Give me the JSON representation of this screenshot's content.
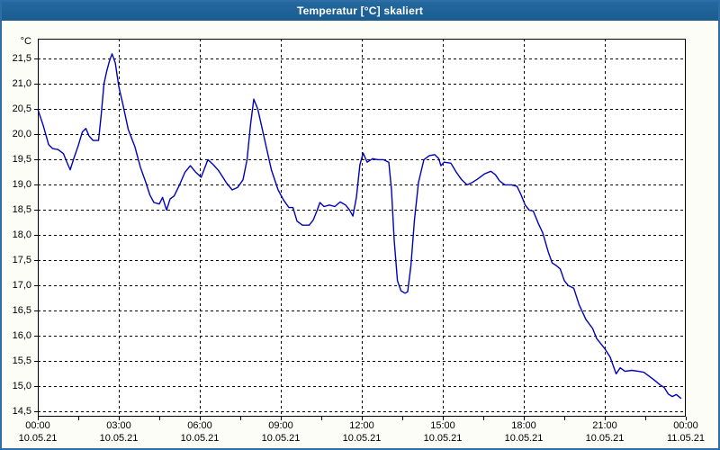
{
  "window": {
    "title": "Temperatur [°C] skaliert"
  },
  "colors": {
    "titlebar_bg": "#1E6297",
    "titlebar_text": "#FFFFFF",
    "frame_border": "#2E6DA6",
    "page_bg": "#FDFDF8",
    "plot_bg": "#FFFFFF",
    "plot_border": "#000000",
    "grid_color": "#000000",
    "line_color": "#0000BB",
    "label_color": "#000000"
  },
  "chart_data": {
    "type": "line",
    "title": "Temperatur [°C] skaliert",
    "ylabel": "°C",
    "xlabel": "",
    "xlim": [
      0,
      24
    ],
    "ylim": [
      14.4,
      21.9
    ],
    "grid": "dashed",
    "legend": "none",
    "y_ticks": [
      {
        "value": 21.5,
        "label": "21,5"
      },
      {
        "value": 21.0,
        "label": "21,0"
      },
      {
        "value": 20.5,
        "label": "20,5"
      },
      {
        "value": 20.0,
        "label": "20,0"
      },
      {
        "value": 19.5,
        "label": "19,5"
      },
      {
        "value": 19.0,
        "label": "19,0"
      },
      {
        "value": 18.5,
        "label": "18,5"
      },
      {
        "value": 18.0,
        "label": "18,0"
      },
      {
        "value": 17.5,
        "label": "17,5"
      },
      {
        "value": 17.0,
        "label": "17,0"
      },
      {
        "value": 16.5,
        "label": "16,5"
      },
      {
        "value": 16.0,
        "label": "16,0"
      },
      {
        "value": 15.5,
        "label": "15,5"
      },
      {
        "value": 15.0,
        "label": "15,0"
      },
      {
        "value": 14.5,
        "label": "14,5"
      }
    ],
    "x_ticks": [
      {
        "hour": 0,
        "time": "00:00",
        "date": "10.05.21"
      },
      {
        "hour": 3,
        "time": "03:00",
        "date": "10.05.21"
      },
      {
        "hour": 6,
        "time": "06:00",
        "date": "10.05.21"
      },
      {
        "hour": 9,
        "time": "09:00",
        "date": "10.05.21"
      },
      {
        "hour": 12,
        "time": "12:00",
        "date": "10.05.21"
      },
      {
        "hour": 15,
        "time": "15:00",
        "date": "10.05.21"
      },
      {
        "hour": 18,
        "time": "18:00",
        "date": "10.05.21"
      },
      {
        "hour": 21,
        "time": "21:00",
        "date": "10.05.21"
      },
      {
        "hour": 24,
        "time": "00:00",
        "date": "11.05.21"
      }
    ],
    "x_grid_hours": [
      3,
      6,
      9,
      12,
      15,
      18,
      21
    ],
    "x_minor_tick_step_hours": 1.5,
    "series": [
      {
        "name": "Temperatur",
        "unit": "°C",
        "color": "#0000BB",
        "points": [
          [
            0.0,
            20.5
          ],
          [
            0.2,
            20.18
          ],
          [
            0.4,
            19.8
          ],
          [
            0.55,
            19.72
          ],
          [
            0.75,
            19.7
          ],
          [
            0.95,
            19.62
          ],
          [
            1.1,
            19.42
          ],
          [
            1.2,
            19.3
          ],
          [
            1.35,
            19.55
          ],
          [
            1.5,
            19.78
          ],
          [
            1.65,
            20.05
          ],
          [
            1.78,
            20.12
          ],
          [
            1.9,
            19.97
          ],
          [
            2.05,
            19.88
          ],
          [
            2.25,
            19.88
          ],
          [
            2.35,
            20.4
          ],
          [
            2.45,
            21.0
          ],
          [
            2.55,
            21.25
          ],
          [
            2.65,
            21.45
          ],
          [
            2.75,
            21.6
          ],
          [
            2.87,
            21.42
          ],
          [
            3.0,
            20.95
          ],
          [
            3.15,
            20.6
          ],
          [
            3.35,
            20.1
          ],
          [
            3.6,
            19.75
          ],
          [
            3.8,
            19.35
          ],
          [
            4.0,
            19.05
          ],
          [
            4.15,
            18.8
          ],
          [
            4.3,
            18.65
          ],
          [
            4.5,
            18.62
          ],
          [
            4.62,
            18.75
          ],
          [
            4.77,
            18.5
          ],
          [
            4.9,
            18.72
          ],
          [
            5.05,
            18.78
          ],
          [
            5.25,
            19.0
          ],
          [
            5.45,
            19.25
          ],
          [
            5.65,
            19.38
          ],
          [
            5.85,
            19.25
          ],
          [
            6.05,
            19.15
          ],
          [
            6.3,
            19.5
          ],
          [
            6.5,
            19.4
          ],
          [
            6.7,
            19.28
          ],
          [
            7.0,
            19.03
          ],
          [
            7.2,
            18.9
          ],
          [
            7.4,
            18.95
          ],
          [
            7.6,
            19.1
          ],
          [
            7.75,
            19.5
          ],
          [
            7.88,
            20.2
          ],
          [
            8.0,
            20.7
          ],
          [
            8.15,
            20.5
          ],
          [
            8.4,
            19.9
          ],
          [
            8.65,
            19.3
          ],
          [
            8.9,
            18.9
          ],
          [
            9.1,
            18.7
          ],
          [
            9.3,
            18.55
          ],
          [
            9.45,
            18.55
          ],
          [
            9.6,
            18.28
          ],
          [
            9.8,
            18.2
          ],
          [
            10.05,
            18.2
          ],
          [
            10.2,
            18.3
          ],
          [
            10.35,
            18.5
          ],
          [
            10.45,
            18.65
          ],
          [
            10.6,
            18.57
          ],
          [
            10.8,
            18.6
          ],
          [
            11.0,
            18.57
          ],
          [
            11.2,
            18.66
          ],
          [
            11.4,
            18.6
          ],
          [
            11.55,
            18.5
          ],
          [
            11.67,
            18.38
          ],
          [
            11.8,
            18.75
          ],
          [
            11.93,
            19.4
          ],
          [
            12.05,
            19.63
          ],
          [
            12.2,
            19.45
          ],
          [
            12.4,
            19.52
          ],
          [
            12.6,
            19.5
          ],
          [
            12.8,
            19.5
          ],
          [
            13.0,
            19.45
          ],
          [
            13.1,
            18.9
          ],
          [
            13.2,
            17.9
          ],
          [
            13.32,
            17.1
          ],
          [
            13.45,
            16.9
          ],
          [
            13.6,
            16.85
          ],
          [
            13.7,
            16.88
          ],
          [
            13.82,
            17.4
          ],
          [
            13.95,
            18.3
          ],
          [
            14.1,
            19.05
          ],
          [
            14.3,
            19.5
          ],
          [
            14.5,
            19.58
          ],
          [
            14.7,
            19.6
          ],
          [
            14.85,
            19.52
          ],
          [
            14.93,
            19.38
          ],
          [
            15.05,
            19.45
          ],
          [
            15.3,
            19.43
          ],
          [
            15.5,
            19.25
          ],
          [
            15.7,
            19.1
          ],
          [
            15.9,
            19.0
          ],
          [
            16.1,
            19.05
          ],
          [
            16.3,
            19.12
          ],
          [
            16.55,
            19.22
          ],
          [
            16.78,
            19.27
          ],
          [
            16.95,
            19.2
          ],
          [
            17.1,
            19.08
          ],
          [
            17.3,
            19.0
          ],
          [
            17.55,
            19.0
          ],
          [
            17.75,
            18.97
          ],
          [
            17.9,
            18.8
          ],
          [
            18.05,
            18.6
          ],
          [
            18.2,
            18.5
          ],
          [
            18.35,
            18.48
          ],
          [
            18.55,
            18.22
          ],
          [
            18.7,
            18.05
          ],
          [
            18.9,
            17.68
          ],
          [
            19.05,
            17.45
          ],
          [
            19.2,
            17.4
          ],
          [
            19.35,
            17.33
          ],
          [
            19.5,
            17.1
          ],
          [
            19.65,
            17.0
          ],
          [
            19.85,
            16.95
          ],
          [
            20.05,
            16.62
          ],
          [
            20.3,
            16.33
          ],
          [
            20.55,
            16.15
          ],
          [
            20.7,
            15.95
          ],
          [
            20.85,
            15.85
          ],
          [
            21.0,
            15.75
          ],
          [
            21.2,
            15.58
          ],
          [
            21.42,
            15.25
          ],
          [
            21.57,
            15.37
          ],
          [
            21.75,
            15.3
          ],
          [
            22.0,
            15.32
          ],
          [
            22.25,
            15.3
          ],
          [
            22.45,
            15.28
          ],
          [
            22.65,
            15.2
          ],
          [
            22.85,
            15.12
          ],
          [
            23.05,
            15.03
          ],
          [
            23.2,
            14.98
          ],
          [
            23.35,
            14.85
          ],
          [
            23.5,
            14.8
          ],
          [
            23.65,
            14.84
          ],
          [
            23.83,
            14.76
          ]
        ]
      }
    ]
  }
}
